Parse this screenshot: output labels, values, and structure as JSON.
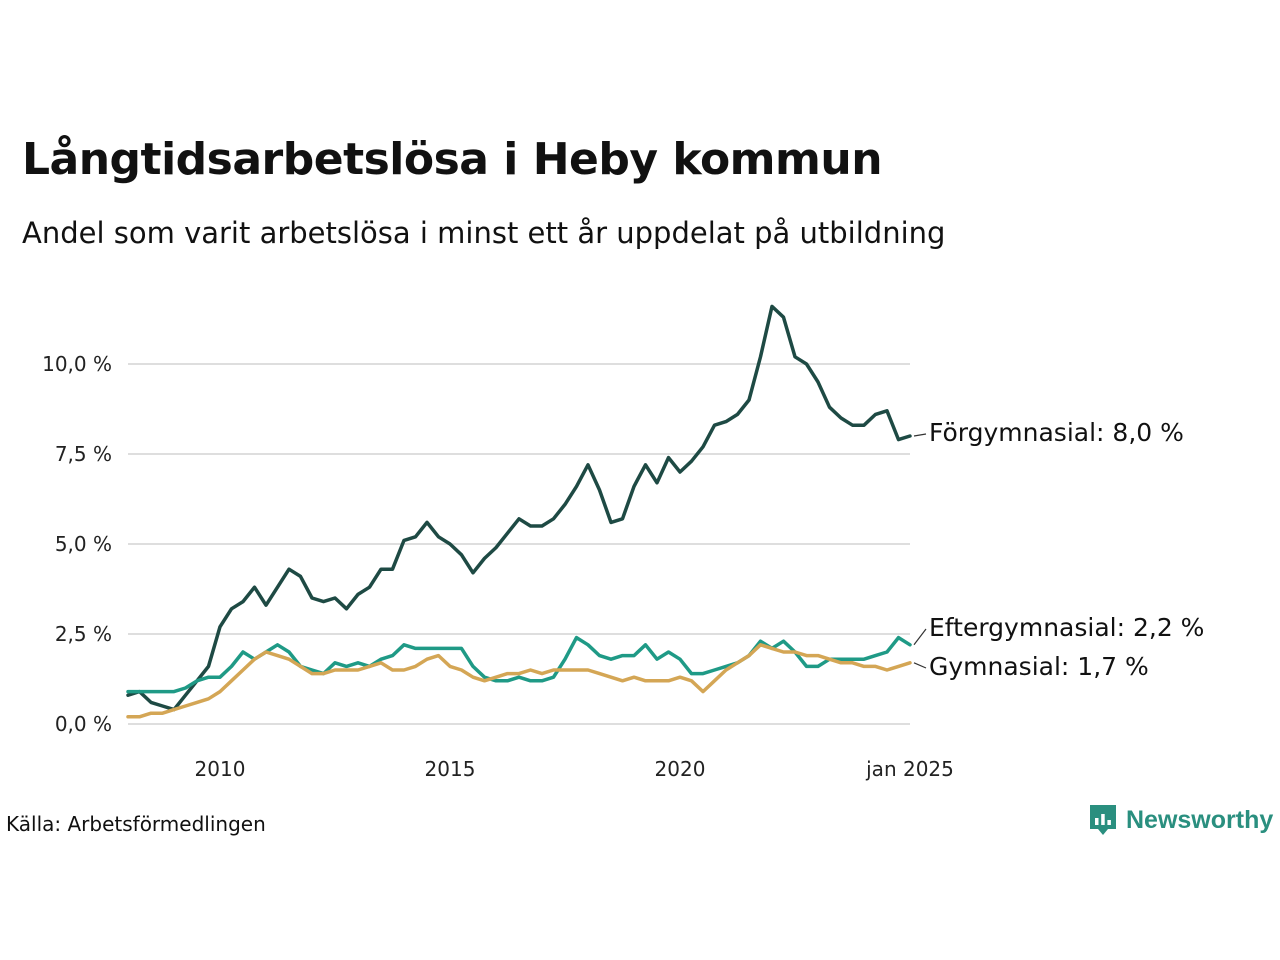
{
  "title": "Långtidsarbetslösa i Heby kommun",
  "subtitle": "Andel som varit arbetslösa i minst ett år uppdelat på utbildning",
  "source": "Källa: Arbetsförmedlingen",
  "brand": {
    "name": "Newsworthy",
    "color": "#2a8f7f",
    "icon": "newsworthy-logo-icon"
  },
  "chart_data": {
    "type": "line",
    "title": "Långtidsarbetslösa i Heby kommun",
    "subtitle": "Andel som varit arbetslösa i minst ett år uppdelat på utbildning",
    "xlabel": "",
    "ylabel": "",
    "grid": true,
    "ylim": [
      0,
      12
    ],
    "xlim": [
      "2008-01",
      "2025-01"
    ],
    "y_ticks": [
      {
        "value": 0,
        "label": "0,0 %"
      },
      {
        "value": 2.5,
        "label": "2,5 %"
      },
      {
        "value": 5,
        "label": "5,0 %"
      },
      {
        "value": 7.5,
        "label": "7,5 %"
      },
      {
        "value": 10,
        "label": "10,0 %"
      }
    ],
    "x_ticks": [
      {
        "value": "2010-01",
        "label": "2010"
      },
      {
        "value": "2015-01",
        "label": "2015"
      },
      {
        "value": "2020-01",
        "label": "2020"
      },
      {
        "value": "2025-01",
        "label": "jan 2025"
      }
    ],
    "series": [
      {
        "name": "Förgymnasial",
        "end_label": "Förgymnasial: 8,0 %",
        "color": "#1e4a44",
        "points": [
          [
            "2008-01",
            0.8
          ],
          [
            "2008-04",
            0.9
          ],
          [
            "2008-07",
            0.6
          ],
          [
            "2008-10",
            0.5
          ],
          [
            "2009-01",
            0.4
          ],
          [
            "2009-04",
            0.8
          ],
          [
            "2009-07",
            1.2
          ],
          [
            "2009-10",
            1.6
          ],
          [
            "2010-01",
            2.7
          ],
          [
            "2010-04",
            3.2
          ],
          [
            "2010-07",
            3.4
          ],
          [
            "2010-10",
            3.8
          ],
          [
            "2011-01",
            3.3
          ],
          [
            "2011-04",
            3.8
          ],
          [
            "2011-07",
            4.3
          ],
          [
            "2011-10",
            4.1
          ],
          [
            "2012-01",
            3.5
          ],
          [
            "2012-04",
            3.4
          ],
          [
            "2012-07",
            3.5
          ],
          [
            "2012-10",
            3.2
          ],
          [
            "2013-01",
            3.6
          ],
          [
            "2013-04",
            3.8
          ],
          [
            "2013-07",
            4.3
          ],
          [
            "2013-10",
            4.3
          ],
          [
            "2014-01",
            5.1
          ],
          [
            "2014-04",
            5.2
          ],
          [
            "2014-07",
            5.6
          ],
          [
            "2014-10",
            5.2
          ],
          [
            "2015-01",
            5.0
          ],
          [
            "2015-04",
            4.7
          ],
          [
            "2015-07",
            4.2
          ],
          [
            "2015-10",
            4.6
          ],
          [
            "2016-01",
            4.9
          ],
          [
            "2016-04",
            5.3
          ],
          [
            "2016-07",
            5.7
          ],
          [
            "2016-10",
            5.5
          ],
          [
            "2017-01",
            5.5
          ],
          [
            "2017-04",
            5.7
          ],
          [
            "2017-07",
            6.1
          ],
          [
            "2017-10",
            6.6
          ],
          [
            "2018-01",
            7.2
          ],
          [
            "2018-04",
            6.5
          ],
          [
            "2018-07",
            5.6
          ],
          [
            "2018-10",
            5.7
          ],
          [
            "2019-01",
            6.6
          ],
          [
            "2019-04",
            7.2
          ],
          [
            "2019-07",
            6.7
          ],
          [
            "2019-10",
            7.4
          ],
          [
            "2020-01",
            7.0
          ],
          [
            "2020-04",
            7.3
          ],
          [
            "2020-07",
            7.7
          ],
          [
            "2020-10",
            8.3
          ],
          [
            "2021-01",
            8.4
          ],
          [
            "2021-04",
            8.6
          ],
          [
            "2021-07",
            9.0
          ],
          [
            "2021-10",
            10.2
          ],
          [
            "2022-01",
            11.6
          ],
          [
            "2022-04",
            11.3
          ],
          [
            "2022-07",
            10.2
          ],
          [
            "2022-10",
            10.0
          ],
          [
            "2023-01",
            9.5
          ],
          [
            "2023-04",
            8.8
          ],
          [
            "2023-07",
            8.5
          ],
          [
            "2023-10",
            8.3
          ],
          [
            "2024-01",
            8.3
          ],
          [
            "2024-04",
            8.6
          ],
          [
            "2024-07",
            8.7
          ],
          [
            "2024-10",
            7.9
          ],
          [
            "2025-01",
            8.0
          ]
        ]
      },
      {
        "name": "Eftergymnasial",
        "end_label": "Eftergymnasial: 2,2 %",
        "color": "#1f9a86",
        "points": [
          [
            "2008-01",
            0.9
          ],
          [
            "2008-04",
            0.9
          ],
          [
            "2008-07",
            0.9
          ],
          [
            "2008-10",
            0.9
          ],
          [
            "2009-01",
            0.9
          ],
          [
            "2009-04",
            1.0
          ],
          [
            "2009-07",
            1.2
          ],
          [
            "2009-10",
            1.3
          ],
          [
            "2010-01",
            1.3
          ],
          [
            "2010-04",
            1.6
          ],
          [
            "2010-07",
            2.0
          ],
          [
            "2010-10",
            1.8
          ],
          [
            "2011-01",
            2.0
          ],
          [
            "2011-04",
            2.2
          ],
          [
            "2011-07",
            2.0
          ],
          [
            "2011-10",
            1.6
          ],
          [
            "2012-01",
            1.5
          ],
          [
            "2012-04",
            1.4
          ],
          [
            "2012-07",
            1.7
          ],
          [
            "2012-10",
            1.6
          ],
          [
            "2013-01",
            1.7
          ],
          [
            "2013-04",
            1.6
          ],
          [
            "2013-07",
            1.8
          ],
          [
            "2013-10",
            1.9
          ],
          [
            "2014-01",
            2.2
          ],
          [
            "2014-04",
            2.1
          ],
          [
            "2014-07",
            2.1
          ],
          [
            "2014-10",
            2.1
          ],
          [
            "2015-01",
            2.1
          ],
          [
            "2015-04",
            2.1
          ],
          [
            "2015-07",
            1.6
          ],
          [
            "2015-10",
            1.3
          ],
          [
            "2016-01",
            1.2
          ],
          [
            "2016-04",
            1.2
          ],
          [
            "2016-07",
            1.3
          ],
          [
            "2016-10",
            1.2
          ],
          [
            "2017-01",
            1.2
          ],
          [
            "2017-04",
            1.3
          ],
          [
            "2017-07",
            1.8
          ],
          [
            "2017-10",
            2.4
          ],
          [
            "2018-01",
            2.2
          ],
          [
            "2018-04",
            1.9
          ],
          [
            "2018-07",
            1.8
          ],
          [
            "2018-10",
            1.9
          ],
          [
            "2019-01",
            1.9
          ],
          [
            "2019-04",
            2.2
          ],
          [
            "2019-07",
            1.8
          ],
          [
            "2019-10",
            2.0
          ],
          [
            "2020-01",
            1.8
          ],
          [
            "2020-04",
            1.4
          ],
          [
            "2020-07",
            1.4
          ],
          [
            "2020-10",
            1.5
          ],
          [
            "2021-01",
            1.6
          ],
          [
            "2021-04",
            1.7
          ],
          [
            "2021-07",
            1.9
          ],
          [
            "2021-10",
            2.3
          ],
          [
            "2022-01",
            2.1
          ],
          [
            "2022-04",
            2.3
          ],
          [
            "2022-07",
            2.0
          ],
          [
            "2022-10",
            1.6
          ],
          [
            "2023-01",
            1.6
          ],
          [
            "2023-04",
            1.8
          ],
          [
            "2023-07",
            1.8
          ],
          [
            "2023-10",
            1.8
          ],
          [
            "2024-01",
            1.8
          ],
          [
            "2024-04",
            1.9
          ],
          [
            "2024-07",
            2.0
          ],
          [
            "2024-10",
            2.4
          ],
          [
            "2025-01",
            2.2
          ]
        ]
      },
      {
        "name": "Gymnasial",
        "end_label": "Gymnasial: 1,7 %",
        "color": "#d4a655",
        "points": [
          [
            "2008-01",
            0.2
          ],
          [
            "2008-04",
            0.2
          ],
          [
            "2008-07",
            0.3
          ],
          [
            "2008-10",
            0.3
          ],
          [
            "2009-01",
            0.4
          ],
          [
            "2009-04",
            0.5
          ],
          [
            "2009-07",
            0.6
          ],
          [
            "2009-10",
            0.7
          ],
          [
            "2010-01",
            0.9
          ],
          [
            "2010-04",
            1.2
          ],
          [
            "2010-07",
            1.5
          ],
          [
            "2010-10",
            1.8
          ],
          [
            "2011-01",
            2.0
          ],
          [
            "2011-04",
            1.9
          ],
          [
            "2011-07",
            1.8
          ],
          [
            "2011-10",
            1.6
          ],
          [
            "2012-01",
            1.4
          ],
          [
            "2012-04",
            1.4
          ],
          [
            "2012-07",
            1.5
          ],
          [
            "2012-10",
            1.5
          ],
          [
            "2013-01",
            1.5
          ],
          [
            "2013-04",
            1.6
          ],
          [
            "2013-07",
            1.7
          ],
          [
            "2013-10",
            1.5
          ],
          [
            "2014-01",
            1.5
          ],
          [
            "2014-04",
            1.6
          ],
          [
            "2014-07",
            1.8
          ],
          [
            "2014-10",
            1.9
          ],
          [
            "2015-01",
            1.6
          ],
          [
            "2015-04",
            1.5
          ],
          [
            "2015-07",
            1.3
          ],
          [
            "2015-10",
            1.2
          ],
          [
            "2016-01",
            1.3
          ],
          [
            "2016-04",
            1.4
          ],
          [
            "2016-07",
            1.4
          ],
          [
            "2016-10",
            1.5
          ],
          [
            "2017-01",
            1.4
          ],
          [
            "2017-04",
            1.5
          ],
          [
            "2017-07",
            1.5
          ],
          [
            "2017-10",
            1.5
          ],
          [
            "2018-01",
            1.5
          ],
          [
            "2018-04",
            1.4
          ],
          [
            "2018-07",
            1.3
          ],
          [
            "2018-10",
            1.2
          ],
          [
            "2019-01",
            1.3
          ],
          [
            "2019-04",
            1.2
          ],
          [
            "2019-07",
            1.2
          ],
          [
            "2019-10",
            1.2
          ],
          [
            "2020-01",
            1.3
          ],
          [
            "2020-04",
            1.2
          ],
          [
            "2020-07",
            0.9
          ],
          [
            "2020-10",
            1.2
          ],
          [
            "2021-01",
            1.5
          ],
          [
            "2021-04",
            1.7
          ],
          [
            "2021-07",
            1.9
          ],
          [
            "2021-10",
            2.2
          ],
          [
            "2022-01",
            2.1
          ],
          [
            "2022-04",
            2.0
          ],
          [
            "2022-07",
            2.0
          ],
          [
            "2022-10",
            1.9
          ],
          [
            "2023-01",
            1.9
          ],
          [
            "2023-04",
            1.8
          ],
          [
            "2023-07",
            1.7
          ],
          [
            "2023-10",
            1.7
          ],
          [
            "2024-01",
            1.6
          ],
          [
            "2024-04",
            1.6
          ],
          [
            "2024-07",
            1.5
          ],
          [
            "2024-10",
            1.6
          ],
          [
            "2025-01",
            1.7
          ]
        ]
      }
    ]
  }
}
